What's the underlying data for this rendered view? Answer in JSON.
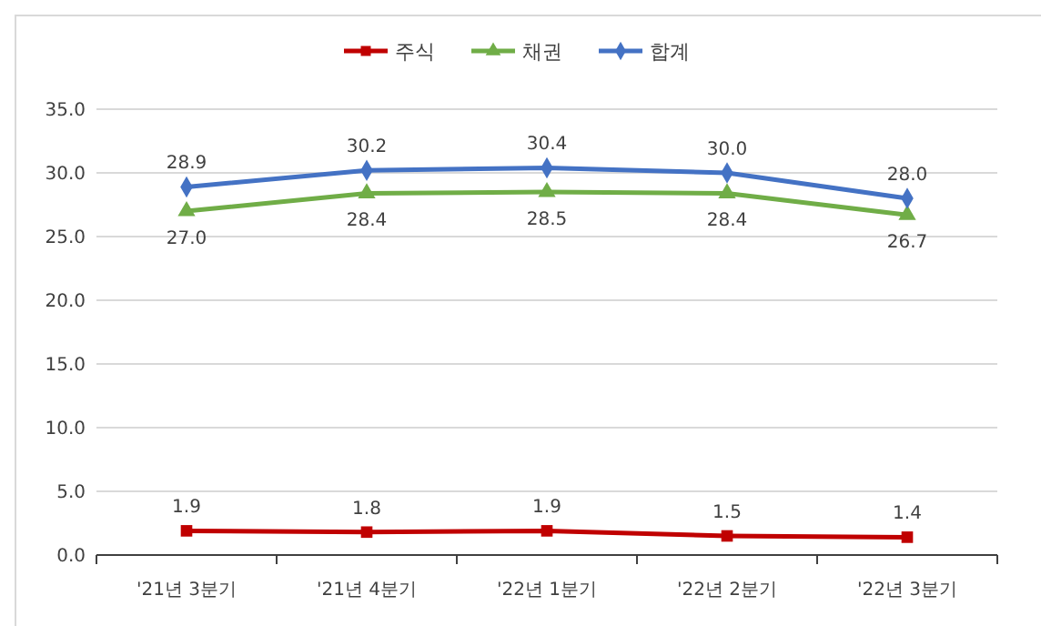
{
  "chart_data": {
    "type": "line",
    "categories": [
      "'21년 3분기",
      "'21년 4분기",
      "'22년 1분기",
      "'22년 2분기",
      "'22년 3분기"
    ],
    "series": [
      {
        "name": "주식",
        "color": "#c00000",
        "marker": "square",
        "values": [
          1.9,
          1.8,
          1.9,
          1.5,
          1.4
        ],
        "value_labels": [
          "1.9",
          "1.8",
          "1.9",
          "1.5",
          "1.4"
        ]
      },
      {
        "name": "채권",
        "color": "#70ad47",
        "marker": "triangle",
        "values": [
          27.0,
          28.4,
          28.5,
          28.4,
          26.7
        ],
        "value_labels": [
          "27.0",
          "28.4",
          "28.5",
          "28.4",
          "26.7"
        ]
      },
      {
        "name": "합계",
        "color": "#4472c4",
        "marker": "diamond",
        "values": [
          28.9,
          30.2,
          30.4,
          30.0,
          28.0
        ],
        "value_labels": [
          "28.9",
          "30.2",
          "30.4",
          "30.0",
          "28.0"
        ]
      }
    ],
    "ylim": [
      0,
      35
    ],
    "yticks": [
      {
        "value": 0,
        "label": "0.0"
      },
      {
        "value": 5,
        "label": "5.0"
      },
      {
        "value": 10,
        "label": "10.0"
      },
      {
        "value": 15,
        "label": "15.0"
      },
      {
        "value": 20,
        "label": "20.0"
      },
      {
        "value": 25,
        "label": "25.0"
      },
      {
        "value": 30,
        "label": "30.0"
      },
      {
        "value": 35,
        "label": "35.0"
      }
    ],
    "grid": "y",
    "legend": "top",
    "line_style": "solid"
  }
}
